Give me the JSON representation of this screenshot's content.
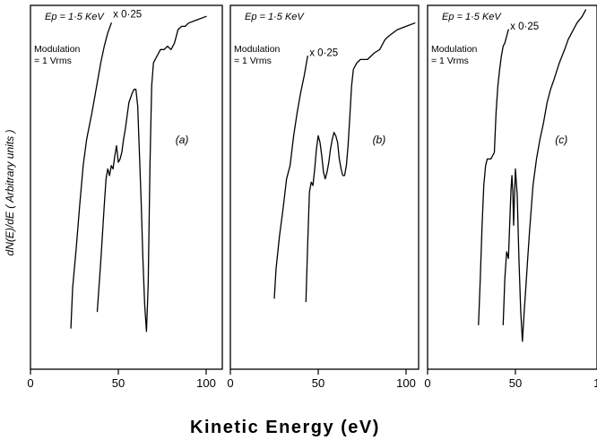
{
  "chart_data": {
    "type": "line",
    "ylabel": "dN(E)/dE ( Arbitrary units )",
    "xlabel": "Kinetic Energy (eV)",
    "xticks": [
      "0",
      "50",
      "100"
    ],
    "xlim": [
      0,
      105
    ],
    "panels": [
      {
        "label": "(a)",
        "energy_text": "Ep = 1·5 KeV",
        "modulation_text": [
          "Modulation",
          "= 1 Vrms"
        ],
        "scale_text": "x 0·25",
        "series": [
          {
            "x": [
              23,
              24,
              26,
              28,
              30,
              32,
              35,
              38,
              40,
              42,
              44,
              46
            ],
            "y": [
              0.07,
              0.19,
              0.31,
              0.44,
              0.56,
              0.64,
              0.72,
              0.81,
              0.87,
              0.92,
              0.96,
              0.99
            ]
          },
          {
            "x": [
              38,
              40,
              42,
              43,
              44,
              45,
              46,
              47,
              48,
              49,
              50,
              51,
              52,
              53,
              54,
              56,
              58,
              59,
              60,
              61,
              62,
              63,
              64,
              65,
              66,
              67,
              68,
              69,
              70,
              72,
              74,
              76,
              78,
              80,
              82,
              84,
              86,
              88,
              90,
              95,
              100
            ],
            "y": [
              0.12,
              0.27,
              0.44,
              0.52,
              0.55,
              0.53,
              0.56,
              0.55,
              0.59,
              0.62,
              0.57,
              0.58,
              0.6,
              0.64,
              0.67,
              0.75,
              0.78,
              0.79,
              0.79,
              0.74,
              0.6,
              0.45,
              0.28,
              0.14,
              0.06,
              0.2,
              0.56,
              0.8,
              0.87,
              0.89,
              0.91,
              0.91,
              0.92,
              0.91,
              0.93,
              0.97,
              0.98,
              0.98,
              0.99,
              1.0,
              1.01
            ]
          }
        ]
      },
      {
        "label": "(b)",
        "energy_text": "Ep = 1·5 KeV",
        "modulation_text": [
          "Modulation",
          "= 1 Vrms"
        ],
        "scale_text": "x 0·25",
        "series": [
          {
            "x": [
              25,
              26,
              28,
              30,
              32,
              34,
              36,
              38,
              40,
              42,
              44
            ],
            "y": [
              0.16,
              0.25,
              0.35,
              0.43,
              0.52,
              0.56,
              0.65,
              0.72,
              0.78,
              0.83,
              0.89
            ]
          },
          {
            "x": [
              43,
              44,
              45,
              46,
              47,
              48,
              49,
              50,
              51,
              52,
              53,
              54,
              55,
              56,
              57,
              58,
              59,
              60,
              61,
              62,
              63,
              64,
              65,
              66,
              67,
              68,
              69,
              70,
              72,
              74,
              78,
              82,
              85,
              88,
              90,
              95,
              100,
              105
            ],
            "y": [
              0.15,
              0.32,
              0.48,
              0.51,
              0.5,
              0.55,
              0.61,
              0.65,
              0.63,
              0.59,
              0.54,
              0.52,
              0.54,
              0.57,
              0.61,
              0.64,
              0.66,
              0.65,
              0.63,
              0.58,
              0.55,
              0.53,
              0.53,
              0.56,
              0.62,
              0.71,
              0.8,
              0.85,
              0.87,
              0.88,
              0.88,
              0.9,
              0.91,
              0.94,
              0.95,
              0.97,
              0.98,
              0.99
            ]
          }
        ]
      },
      {
        "label": "(c)",
        "energy_text": "Ep = 1·5 KeV",
        "modulation_text": [
          "Modulation",
          "= 1 Vrms"
        ],
        "scale_text": "x 0·25",
        "series": [
          {
            "x": [
              29,
              30,
              31,
              32,
              33,
              34,
              36,
              38,
              39,
              40,
              41,
              42,
              43,
              44,
              45,
              46
            ],
            "y": [
              0.08,
              0.22,
              0.38,
              0.5,
              0.56,
              0.58,
              0.58,
              0.6,
              0.72,
              0.8,
              0.85,
              0.89,
              0.92,
              0.93,
              0.95,
              0.97
            ]
          },
          {
            "x": [
              43,
              44,
              45,
              46,
              47,
              47.5,
              48,
              48.5,
              49,
              49.5,
              50,
              51,
              52,
              53,
              54,
              55,
              56,
              57,
              58,
              60,
              62,
              64,
              66,
              68,
              70,
              72,
              75,
              78,
              80,
              82,
              85,
              88,
              90
            ],
            "y": [
              0.08,
              0.22,
              0.3,
              0.28,
              0.42,
              0.49,
              0.53,
              0.48,
              0.38,
              0.47,
              0.55,
              0.47,
              0.28,
              0.12,
              0.03,
              0.12,
              0.2,
              0.28,
              0.36,
              0.5,
              0.58,
              0.64,
              0.69,
              0.75,
              0.79,
              0.82,
              0.87,
              0.91,
              0.94,
              0.96,
              0.99,
              1.01,
              1.03
            ]
          }
        ]
      }
    ]
  }
}
